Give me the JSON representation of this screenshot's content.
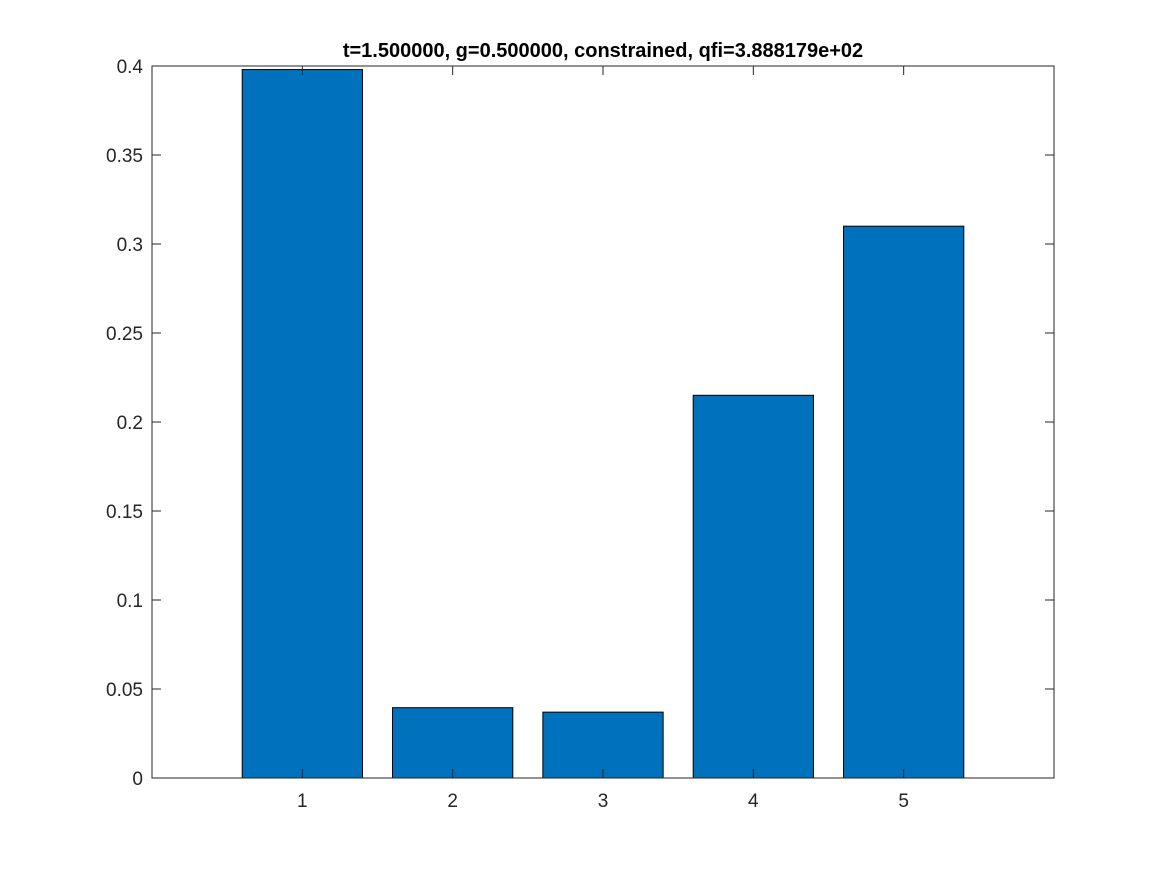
{
  "chart_data": {
    "type": "bar",
    "title": "t=1.500000, g=0.500000, constrained, qfi=3.888179e+02",
    "xlabel": "",
    "ylabel": "",
    "categories": [
      "1",
      "2",
      "3",
      "4",
      "5"
    ],
    "values": [
      0.398,
      0.0395,
      0.037,
      0.215,
      0.31
    ],
    "xlim": [
      0,
      6
    ],
    "ylim": [
      0,
      0.4
    ],
    "yticks": [
      0,
      0.05,
      0.1,
      0.15,
      0.2,
      0.25,
      0.3,
      0.35,
      0.4
    ],
    "ytick_labels": [
      "0",
      "0.05",
      "0.1",
      "0.15",
      "0.2",
      "0.25",
      "0.3",
      "0.35",
      "0.4"
    ],
    "bar_color": "#0072BD",
    "bar_edge_color": "#000000",
    "grid": false,
    "legend": "none"
  }
}
